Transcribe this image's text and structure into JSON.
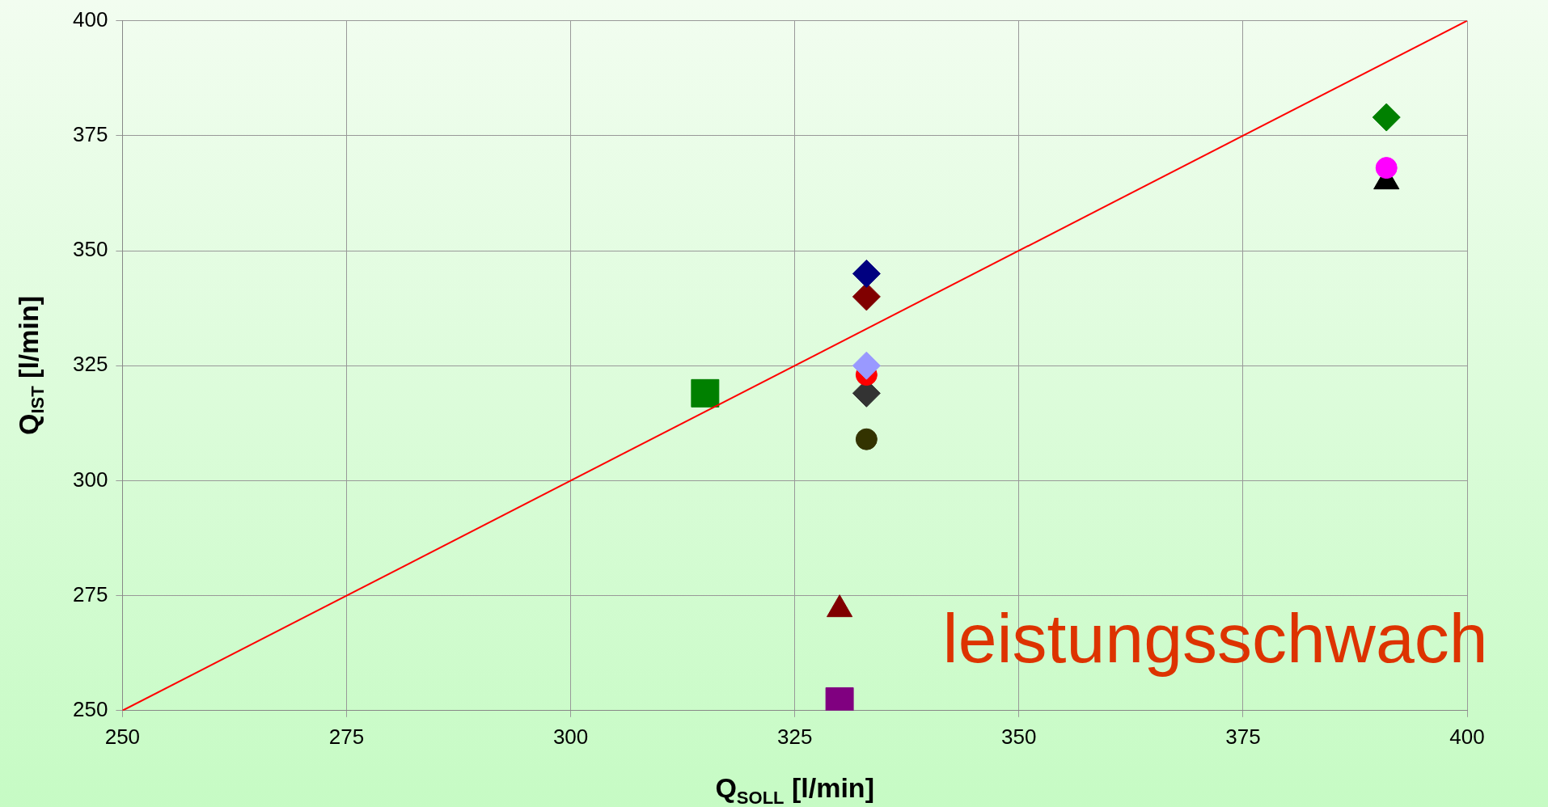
{
  "chart_data": {
    "type": "scatter",
    "xlabel": "Q$_{SOLL}$ [l/min]",
    "ylabel": "Q$_{IST}$ [l/min]",
    "xlim": [
      250,
      400
    ],
    "xticks": [
      250,
      275,
      300,
      325,
      350,
      375,
      400
    ],
    "ylim": [
      250,
      400
    ],
    "yticks": [
      250,
      275,
      300,
      325,
      350,
      375,
      400
    ],
    "grid": true,
    "legend": false,
    "annotations": [
      "leistungsschwach"
    ],
    "series": [
      {
        "type": "line",
        "x": [
          250,
          400
        ],
        "values": [
          250,
          400
        ],
        "color": "#ff0000",
        "marker": "none",
        "line_style": "solid"
      },
      {
        "x": [
          391
        ],
        "values": [
          379
        ],
        "color": "#008000",
        "marker": "diamond"
      },
      {
        "x": [
          391
        ],
        "values": [
          368
        ],
        "color": "#ff00ff",
        "marker": "circle"
      },
      {
        "x": [
          391
        ],
        "values": [
          365
        ],
        "color": "#000000",
        "marker": "triangle"
      },
      {
        "x": [
          333
        ],
        "values": [
          345
        ],
        "color": "#000080",
        "marker": "diamond"
      },
      {
        "x": [
          333
        ],
        "values": [
          340
        ],
        "color": "#800000",
        "marker": "diamond"
      },
      {
        "x": [
          333
        ],
        "values": [
          325
        ],
        "color": "#9999ff",
        "marker": "diamond"
      },
      {
        "x": [
          333
        ],
        "values": [
          323
        ],
        "color": "#ff0000",
        "marker": "circle"
      },
      {
        "x": [
          333
        ],
        "values": [
          319
        ],
        "color": "#333333",
        "marker": "diamond"
      },
      {
        "x": [
          333
        ],
        "values": [
          309
        ],
        "color": "#333300",
        "marker": "circle"
      },
      {
        "x": [
          315
        ],
        "values": [
          319
        ],
        "color": "#008000",
        "marker": "square"
      },
      {
        "x": [
          330
        ],
        "values": [
          272
        ],
        "color": "#800000",
        "marker": "triangle"
      },
      {
        "x": [
          330
        ],
        "values": [
          252
        ],
        "color": "#800080",
        "marker": "square"
      }
    ]
  }
}
